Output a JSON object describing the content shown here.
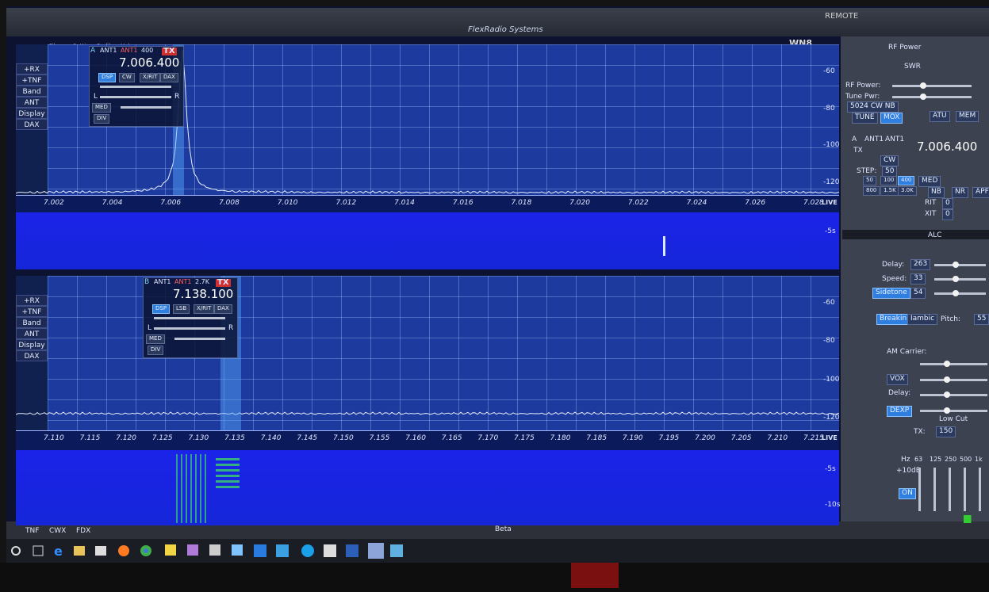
{
  "window": {
    "title": "FlexRadio Systems",
    "remote": "REMOTE",
    "callsign": "WN8",
    "menu": [
      "File",
      "Settings",
      "Profiles",
      "Help"
    ]
  },
  "panadapters": [
    {
      "side_buttons": [
        "+RX",
        "+TNF",
        "Band",
        "ANT",
        "Display",
        "DAX"
      ],
      "slice": {
        "letter": "A",
        "rx_ant": "ANT1",
        "tx_ant": "ANT1",
        "filter": "400",
        "frequency": "7.006.400",
        "tx": "TX",
        "buttons": [
          "DSP",
          "CW",
          "X/RIT",
          "DAX"
        ],
        "agc": "MED",
        "div": "DIV",
        "left": "L",
        "right": "R"
      },
      "dbm_ticks": [
        "-60",
        "-80",
        "-100",
        "-120"
      ],
      "freq_ticks": [
        "7.002",
        "7.004",
        "7.006",
        "7.008",
        "7.010",
        "7.012",
        "7.014",
        "7.016",
        "7.018",
        "7.020",
        "7.022",
        "7.024",
        "7.026",
        "7.028"
      ],
      "live": "LIVE",
      "time_ticks": [
        "-5s"
      ]
    },
    {
      "side_buttons": [
        "+RX",
        "+TNF",
        "Band",
        "ANT",
        "Display",
        "DAX"
      ],
      "slice": {
        "letter": "B",
        "rx_ant": "ANT1",
        "tx_ant": "ANT1",
        "filter": "2.7K",
        "frequency": "7.138.100",
        "tx": "TX",
        "buttons": [
          "DSP",
          "LSB",
          "X/RIT",
          "DAX"
        ],
        "agc": "MED",
        "div": "DIV",
        "left": "L",
        "right": "R"
      },
      "dbm_ticks": [
        "-60",
        "-80",
        "-100",
        "-120"
      ],
      "freq_ticks": [
        "7.110",
        "7.115",
        "7.120",
        "7.125",
        "7.130",
        "7.135",
        "7.140",
        "7.145",
        "7.150",
        "7.155",
        "7.160",
        "7.165",
        "7.170",
        "7.175",
        "7.180",
        "7.185",
        "7.190",
        "7.195",
        "7.200",
        "7.205",
        "7.210",
        "7.215"
      ],
      "live": "LIVE",
      "time_ticks": [
        "-5s",
        "-10s"
      ]
    }
  ],
  "transmit": {
    "rf_power_meter": "RF Power",
    "swr_meter": "SWR",
    "rf_power": "RF Power:",
    "tune_power": "Tune Pwr:",
    "profile": "5024 CW NB",
    "tune": "TUNE",
    "mox": "MOX",
    "atu": "ATU",
    "mem": "MEM"
  },
  "slice_panel": {
    "letter": "A",
    "rx_ant": "ANT1",
    "tx_ant": "ANT1",
    "frequency": "7.006.400",
    "tx": "TX",
    "mode": "CW",
    "step_label": "STEP:",
    "step": "50",
    "filters": [
      "50",
      "100",
      "400",
      "800",
      "1.5K",
      "3.0K"
    ],
    "agc": "MED",
    "nb": "NB",
    "nr": "NR",
    "apf": "APF",
    "rit": "RIT",
    "rit_value": "0",
    "xit": "XIT",
    "xit_value": "0",
    "alc": "ALC"
  },
  "cw": {
    "delay": "Delay:",
    "delay_value": "263",
    "speed": "Speed:",
    "speed_value": "33",
    "sidetone": "Sidetone",
    "sidetone_value": "54",
    "breakin": "Breakin",
    "iambic": "Iambic",
    "pitch": "Pitch:",
    "pitch_value": "55"
  },
  "phone": {
    "am_carrier": "AM Carrier:",
    "vox": "VOX",
    "delay": "Delay:",
    "dexp": "DEXP",
    "low_cut": "Low Cut",
    "tx": "TX:",
    "tx_value": "150"
  },
  "eq": {
    "hz": "Hz",
    "bands": [
      "63",
      "125",
      "250",
      "500",
      "1k"
    ],
    "gain": "+10dB",
    "on": "ON"
  },
  "status_bar": {
    "tnf": "TNF",
    "cwx": "CWX",
    "fdx": "FDX",
    "beta": "Beta"
  }
}
